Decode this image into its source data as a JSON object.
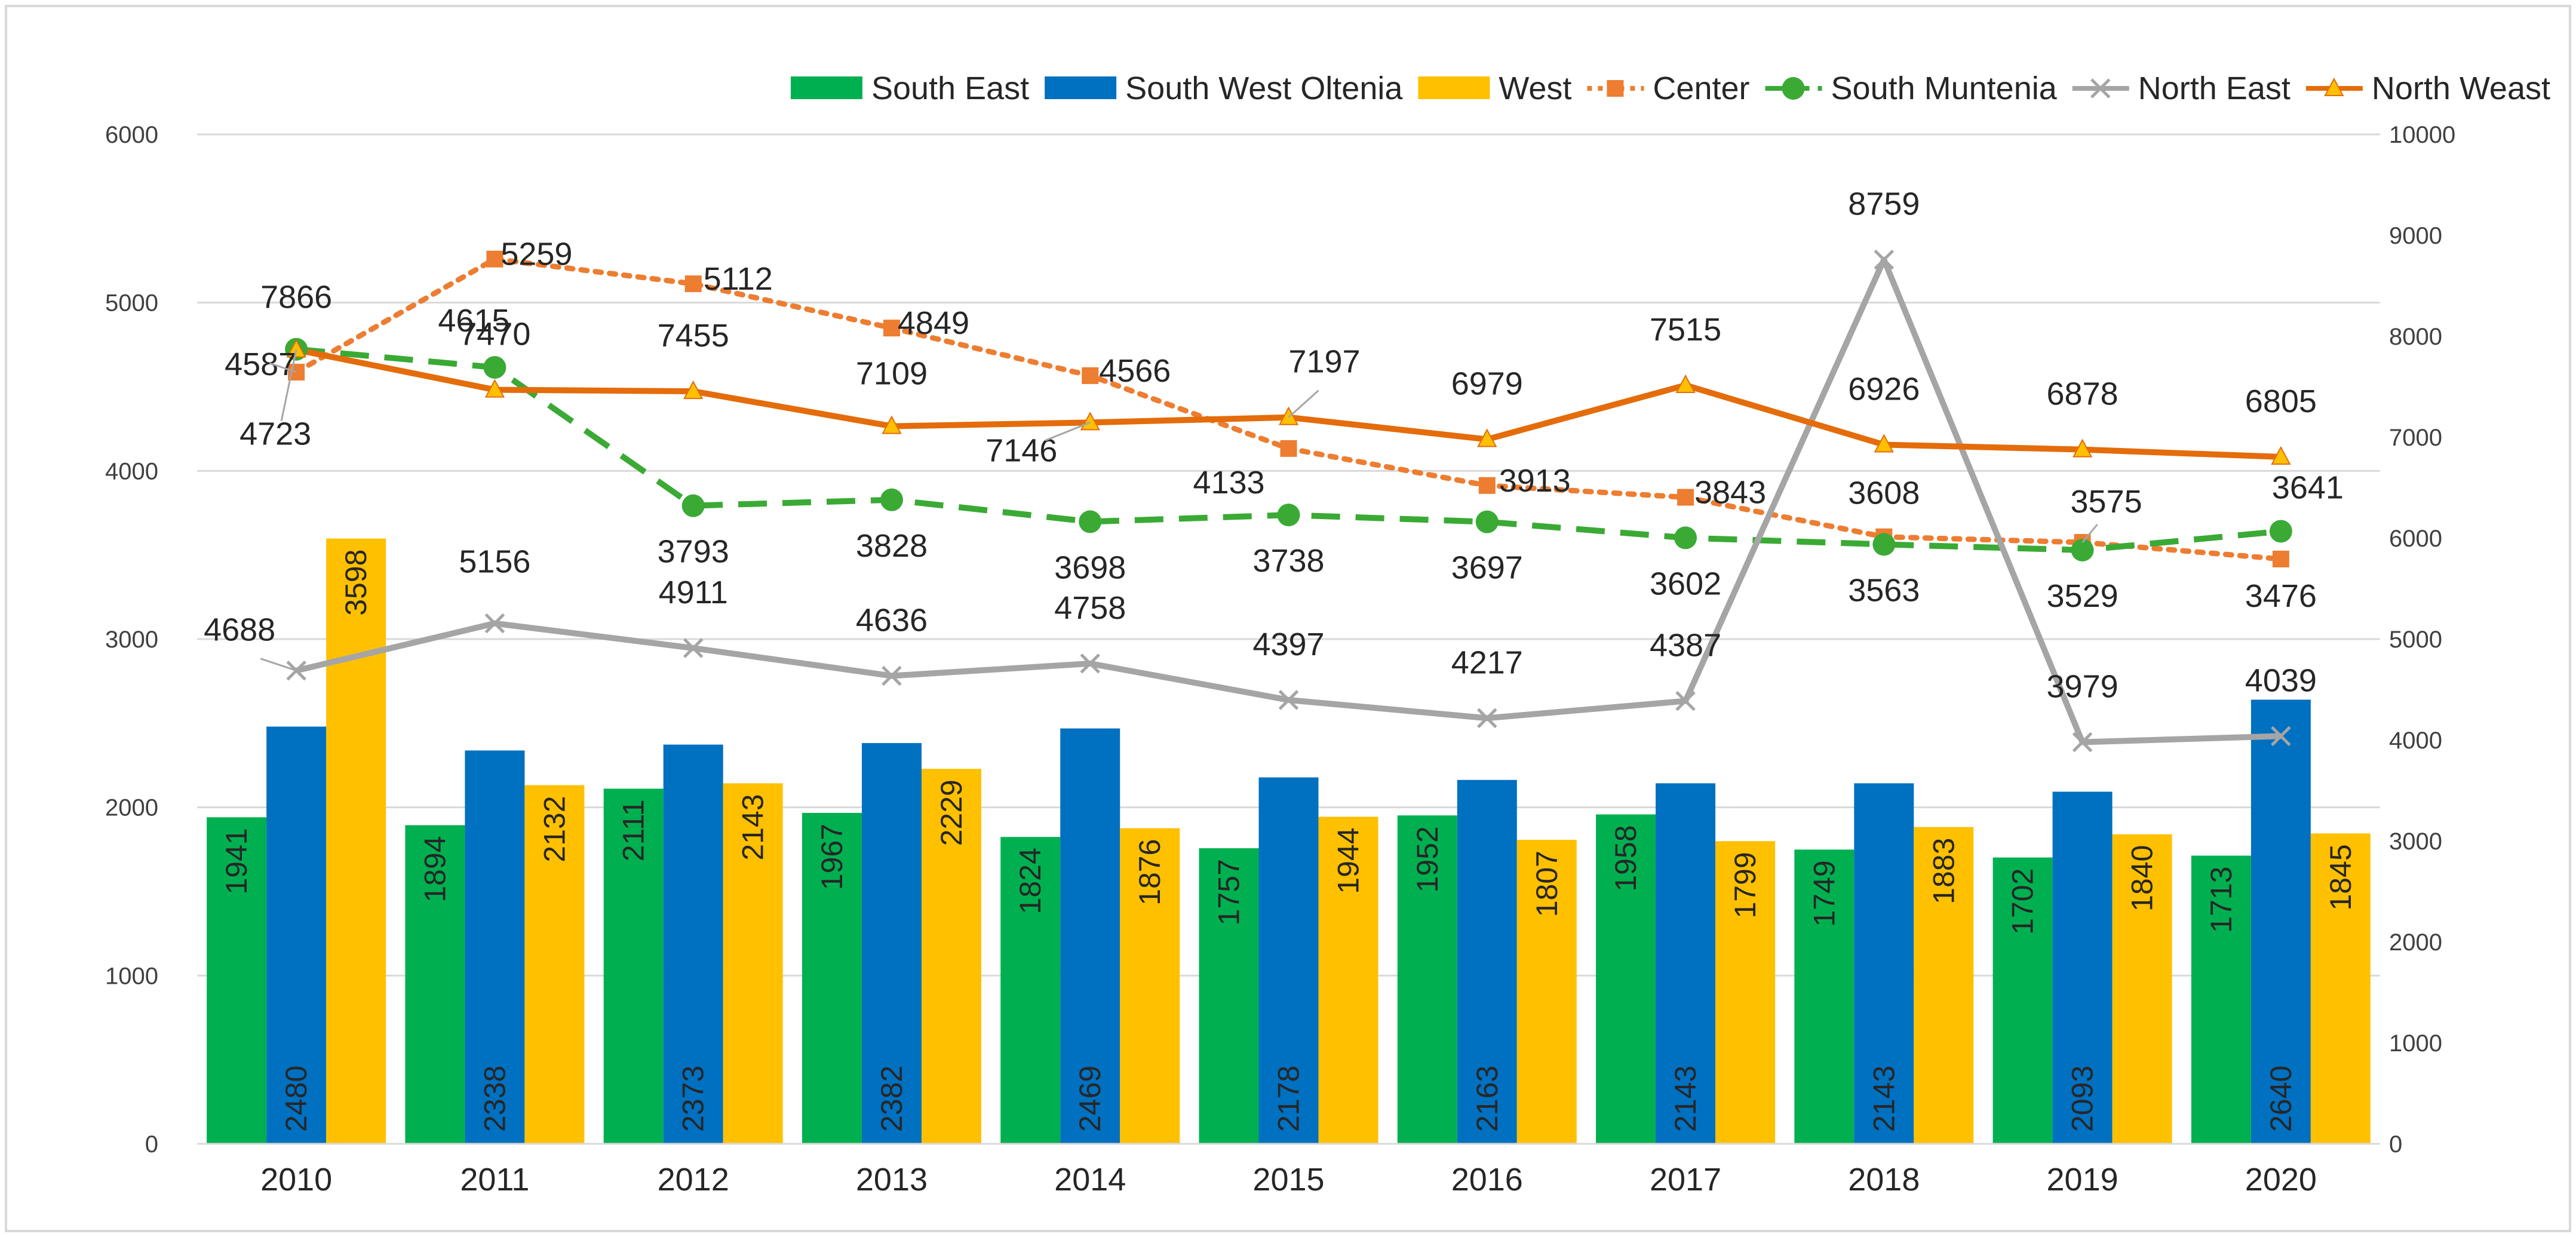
{
  "chart_data": {
    "type": "bar",
    "title": "",
    "categories": [
      "2010",
      "2011",
      "2012",
      "2013",
      "2014",
      "2015",
      "2016",
      "2017",
      "2018",
      "2019",
      "2020"
    ],
    "y_left": {
      "min": 0,
      "max": 6000,
      "ticks": [
        "0",
        "1000",
        "2000",
        "3000",
        "4000",
        "5000",
        "6000"
      ]
    },
    "y_right": {
      "min": 0,
      "max": 10000,
      "ticks": [
        "0",
        "1000",
        "2000",
        "3000",
        "4000",
        "5000",
        "6000",
        "7000",
        "8000",
        "9000",
        "10000"
      ]
    },
    "grid": true,
    "legend_position": "top-right",
    "bar_series": [
      {
        "name": "South East",
        "color": "#00B050",
        "axis": "left",
        "labels": [
          "1941",
          "1894",
          "2111",
          "1967",
          "1824",
          "1757",
          "1952",
          "1958",
          "1749",
          "1702",
          "1713"
        ],
        "values": [
          1941,
          1894,
          2111,
          1967,
          1824,
          1757,
          1952,
          1958,
          1749,
          1702,
          1713
        ]
      },
      {
        "name": "South West Oltenia",
        "color": "#0070C0",
        "axis": "left",
        "labels": [
          "2480",
          "2338",
          "2373",
          "2382",
          "2469",
          "2178",
          "2163",
          "2143",
          "2143",
          "2093",
          "2640"
        ],
        "values": [
          2480,
          2338,
          2373,
          2382,
          2469,
          2178,
          2163,
          2143,
          2143,
          2093,
          2640
        ]
      },
      {
        "name": "West",
        "color": "#FFC000",
        "axis": "left",
        "labels": [
          "3598",
          "2132",
          "2143",
          "2229",
          "1876",
          "1944",
          "1807",
          "1799",
          "1883",
          "1840",
          "1845"
        ],
        "values": [
          3598,
          2132,
          2143,
          2229,
          1876,
          1944,
          1807,
          1799,
          1883,
          1840,
          1845
        ]
      }
    ],
    "line_series": [
      {
        "name": "Center",
        "color": "#ED7D31",
        "style": "dotted",
        "marker": "square",
        "axis": "left",
        "labels": [
          "4587",
          "5259",
          "5112",
          "4849",
          "4566",
          "4133",
          "3913",
          "3843",
          "3608",
          "3575",
          "3476"
        ],
        "values": [
          4587,
          5259,
          5112,
          4849,
          4566,
          4133,
          3913,
          3843,
          3608,
          3575,
          3476
        ]
      },
      {
        "name": "South Muntenia",
        "color": "#3AAA35",
        "style": "dashed",
        "marker": "circle",
        "axis": "left",
        "labels": [
          "4723",
          "4615",
          "3793",
          "3828",
          "3698",
          "3738",
          "3697",
          "3602",
          "3563",
          "3529",
          "3641"
        ],
        "values": [
          4723,
          4615,
          3793,
          3828,
          3698,
          3738,
          3697,
          3602,
          3563,
          3529,
          3641
        ]
      },
      {
        "name": "North East",
        "color": "#A5A5A5",
        "style": "solid",
        "marker": "x",
        "axis": "right",
        "labels": [
          "4688",
          "5156",
          "4911",
          "4636",
          "4758",
          "4397",
          "4217",
          "4387",
          "8759",
          "3979",
          "4039"
        ],
        "values": [
          4688,
          5156,
          4911,
          4636,
          4758,
          4397,
          4217,
          4387,
          8759,
          3979,
          4039
        ]
      },
      {
        "name": "North Weast",
        "color": "#E46C0A",
        "style": "solid",
        "marker": "triangle",
        "axis": "right",
        "labels": [
          "7866",
          "7470",
          "7455",
          "7109",
          "7146",
          "7197",
          "6979",
          "7515",
          "6926",
          "6878",
          "6805"
        ],
        "values": [
          7866,
          7470,
          7455,
          7109,
          7146,
          7197,
          6979,
          7515,
          6926,
          6878,
          6805
        ]
      }
    ],
    "legend_order": [
      "South East",
      "South West Oltenia",
      "West",
      "Center",
      "South Muntenia",
      "North East",
      "North Weast"
    ]
  }
}
